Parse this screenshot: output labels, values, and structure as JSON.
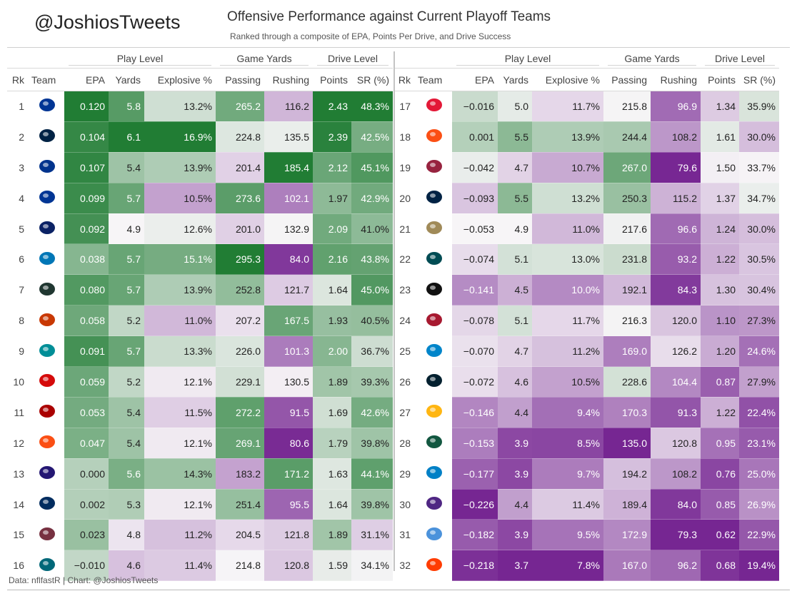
{
  "header": {
    "handle": "@JoshiosTweets",
    "title": "Offensive Performance against Current Playoff Teams",
    "subtitle": "Ranked through a composite of EPA, Points Per Drive, and Drive Success"
  },
  "footer": {
    "source": "Data: nflfastR | Chart: @JoshiosTweets"
  },
  "palette": {
    "green_strong": "#1f7a34",
    "purple_strong": "#7b2a8f",
    "neutral": "#f8f6f8"
  },
  "chart_data": {
    "type": "table",
    "column_groups": [
      {
        "label": "Play Level",
        "columns": [
          "EPA",
          "Yards",
          "Explosive %"
        ]
      },
      {
        "label": "Game Yards",
        "columns": [
          "Passing",
          "Rushing"
        ]
      },
      {
        "label": "Drive Level",
        "columns": [
          "Points",
          "SR (%)"
        ]
      }
    ],
    "columns": [
      "Rk",
      "Team",
      "EPA",
      "Yards",
      "Explosive %",
      "Passing",
      "Rushing",
      "Points",
      "SR (%)"
    ],
    "value_columns": [
      "EPA",
      "Yards",
      "Explosive %",
      "Passing",
      "Rushing",
      "Points",
      "SR (%)"
    ],
    "rows": [
      {
        "rk": "1",
        "team": "LAR",
        "logo": "rams-icon",
        "color": "#003594",
        "values": [
          "0.120",
          "5.8",
          "13.2%",
          "265.2",
          "116.2",
          "2.43",
          "48.3%"
        ]
      },
      {
        "rk": "2",
        "team": "NE",
        "logo": "patriots-icon",
        "color": "#002244",
        "values": [
          "0.104",
          "6.1",
          "16.9%",
          "224.8",
          "135.5",
          "2.39",
          "42.5%"
        ]
      },
      {
        "rk": "3",
        "team": "BUF",
        "logo": "bills-icon",
        "color": "#00338d",
        "values": [
          "0.107",
          "5.4",
          "13.9%",
          "201.4",
          "185.4",
          "2.12",
          "45.1%"
        ]
      },
      {
        "rk": "4",
        "team": "DAL",
        "logo": "cowboys-icon",
        "color": "#003594",
        "values": [
          "0.099",
          "5.7",
          "10.5%",
          "273.6",
          "102.1",
          "1.97",
          "42.9%"
        ]
      },
      {
        "rk": "5",
        "team": "NYG",
        "logo": "giants-icon",
        "color": "#0b2265",
        "values": [
          "0.092",
          "4.9",
          "12.6%",
          "201.0",
          "132.9",
          "2.09",
          "41.0%"
        ]
      },
      {
        "rk": "6",
        "team": "DET",
        "logo": "lions-icon",
        "color": "#0076b6",
        "values": [
          "0.038",
          "5.7",
          "15.1%",
          "295.3",
          "84.0",
          "2.16",
          "43.8%"
        ]
      },
      {
        "rk": "7",
        "team": "GB",
        "logo": "packers-icon",
        "color": "#203731",
        "values": [
          "0.080",
          "5.7",
          "13.9%",
          "252.8",
          "121.7",
          "1.64",
          "45.0%"
        ]
      },
      {
        "rk": "8",
        "team": "CHI",
        "logo": "bears-icon",
        "color": "#c83803",
        "values": [
          "0.058",
          "5.2",
          "11.0%",
          "207.2",
          "167.5",
          "1.93",
          "40.5%"
        ]
      },
      {
        "rk": "9",
        "team": "MIA",
        "logo": "dolphins-icon",
        "color": "#008e97",
        "values": [
          "0.091",
          "5.7",
          "13.3%",
          "226.0",
          "101.3",
          "2.00",
          "36.7%"
        ]
      },
      {
        "rk": "10",
        "team": "TB",
        "logo": "buccaneers-icon",
        "color": "#d50a0a",
        "values": [
          "0.059",
          "5.2",
          "12.1%",
          "229.1",
          "130.5",
          "1.89",
          "39.3%"
        ]
      },
      {
        "rk": "11",
        "team": "SF",
        "logo": "49ers-icon",
        "color": "#aa0000",
        "values": [
          "0.053",
          "5.4",
          "11.5%",
          "272.2",
          "91.5",
          "1.69",
          "42.6%"
        ]
      },
      {
        "rk": "12",
        "team": "CIN",
        "logo": "bengals-icon",
        "color": "#fb4f14",
        "values": [
          "0.047",
          "5.4",
          "12.1%",
          "269.1",
          "80.6",
          "1.79",
          "39.8%"
        ]
      },
      {
        "rk": "13",
        "team": "BAL",
        "logo": "ravens-icon",
        "color": "#241773",
        "values": [
          "0.000",
          "5.6",
          "14.3%",
          "183.2",
          "171.2",
          "1.63",
          "44.1%"
        ]
      },
      {
        "rk": "14",
        "team": "IND",
        "logo": "colts-icon",
        "color": "#002c5f",
        "values": [
          "0.002",
          "5.3",
          "12.1%",
          "251.4",
          "95.5",
          "1.64",
          "39.8%"
        ]
      },
      {
        "rk": "15",
        "team": "WAS",
        "logo": "commanders-icon",
        "color": "#773141",
        "values": [
          "0.023",
          "4.8",
          "11.2%",
          "204.5",
          "121.8",
          "1.89",
          "31.1%"
        ]
      },
      {
        "rk": "16",
        "team": "JAX",
        "logo": "jaguars-icon",
        "color": "#006778",
        "values": [
          "−0.010",
          "4.6",
          "11.4%",
          "214.8",
          "120.8",
          "1.59",
          "34.1%"
        ]
      },
      {
        "rk": "17",
        "team": "KC",
        "logo": "chiefs-icon",
        "color": "#e31837",
        "values": [
          "−0.016",
          "5.0",
          "11.7%",
          "215.8",
          "96.9",
          "1.34",
          "35.9%"
        ]
      },
      {
        "rk": "18",
        "team": "DEN",
        "logo": "broncos-icon",
        "color": "#fb4f14",
        "values": [
          "0.001",
          "5.5",
          "13.9%",
          "244.4",
          "108.2",
          "1.61",
          "30.0%"
        ]
      },
      {
        "rk": "19",
        "team": "ARI",
        "logo": "cardinals-icon",
        "color": "#97233f",
        "values": [
          "−0.042",
          "4.7",
          "10.7%",
          "267.0",
          "79.6",
          "1.50",
          "33.7%"
        ]
      },
      {
        "rk": "20",
        "team": "SEA",
        "logo": "seahawks-icon",
        "color": "#002244",
        "values": [
          "−0.093",
          "5.5",
          "13.2%",
          "250.3",
          "115.2",
          "1.37",
          "34.7%"
        ]
      },
      {
        "rk": "21",
        "team": "NO",
        "logo": "saints-icon",
        "color": "#a08a58",
        "values": [
          "−0.053",
          "4.9",
          "11.0%",
          "217.6",
          "96.6",
          "1.24",
          "30.0%"
        ]
      },
      {
        "rk": "22",
        "team": "PHI",
        "logo": "eagles-icon",
        "color": "#004c54",
        "values": [
          "−0.074",
          "5.1",
          "13.0%",
          "231.8",
          "93.2",
          "1.22",
          "30.5%"
        ]
      },
      {
        "rk": "23",
        "team": "LV",
        "logo": "raiders-icon",
        "color": "#111111",
        "values": [
          "−0.141",
          "4.5",
          "10.0%",
          "192.1",
          "84.3",
          "1.30",
          "30.4%"
        ]
      },
      {
        "rk": "24",
        "team": "ATL",
        "logo": "falcons-icon",
        "color": "#a71930",
        "values": [
          "−0.078",
          "5.1",
          "11.7%",
          "216.3",
          "120.0",
          "1.10",
          "27.3%"
        ]
      },
      {
        "rk": "25",
        "team": "CAR",
        "logo": "panthers-icon",
        "color": "#0085ca",
        "values": [
          "−0.070",
          "4.7",
          "11.2%",
          "169.0",
          "126.2",
          "1.20",
          "24.6%"
        ]
      },
      {
        "rk": "26",
        "team": "HOU",
        "logo": "texans-icon",
        "color": "#03202f",
        "values": [
          "−0.072",
          "4.6",
          "10.5%",
          "228.6",
          "104.4",
          "0.87",
          "27.9%"
        ]
      },
      {
        "rk": "27",
        "team": "PIT",
        "logo": "steelers-icon",
        "color": "#ffb612",
        "values": [
          "−0.146",
          "4.4",
          "9.4%",
          "170.3",
          "91.3",
          "1.22",
          "22.4%"
        ]
      },
      {
        "rk": "28",
        "team": "NYJ",
        "logo": "jets-icon",
        "color": "#125740",
        "values": [
          "−0.153",
          "3.9",
          "8.5%",
          "135.0",
          "120.8",
          "0.95",
          "23.1%"
        ]
      },
      {
        "rk": "29",
        "team": "LAC",
        "logo": "chargers-icon",
        "color": "#0080c6",
        "values": [
          "−0.177",
          "3.9",
          "9.7%",
          "194.2",
          "108.2",
          "0.76",
          "25.0%"
        ]
      },
      {
        "rk": "30",
        "team": "MIN",
        "logo": "vikings-icon",
        "color": "#4f2683",
        "values": [
          "−0.226",
          "4.4",
          "11.4%",
          "189.4",
          "84.0",
          "0.85",
          "26.9%"
        ]
      },
      {
        "rk": "31",
        "team": "TEN",
        "logo": "titans-icon",
        "color": "#4b92db",
        "values": [
          "−0.182",
          "3.9",
          "9.5%",
          "172.9",
          "79.3",
          "0.62",
          "22.9%"
        ]
      },
      {
        "rk": "32",
        "team": "CLE",
        "logo": "browns-icon",
        "color": "#ff3c00",
        "values": [
          "−0.218",
          "3.7",
          "7.8%",
          "167.0",
          "96.2",
          "0.68",
          "19.4%"
        ]
      }
    ]
  }
}
